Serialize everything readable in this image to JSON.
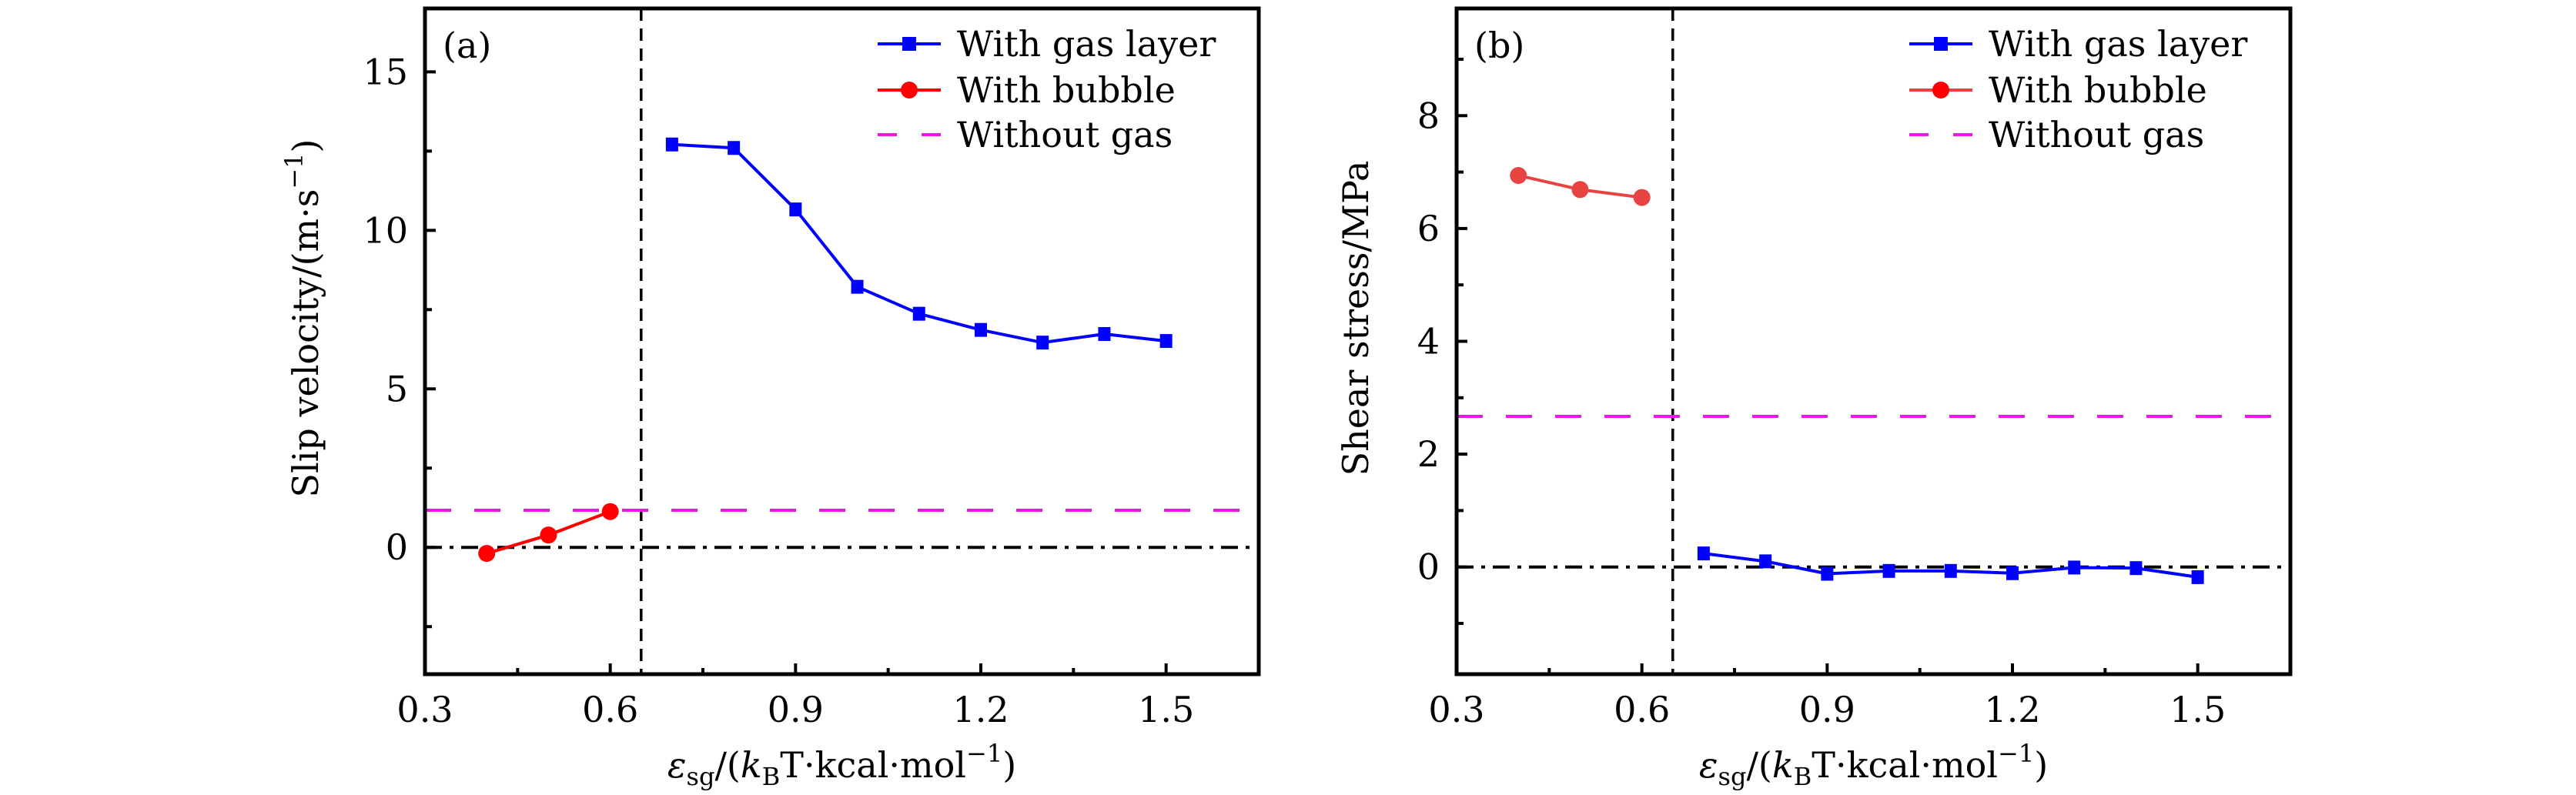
{
  "chart_data": [
    {
      "panel": "(a)",
      "type": "line",
      "xlabel": "εsg/(kBT·kcal·mol−1)",
      "xlabel_parts": {
        "main": "ε",
        "sub": "sg",
        "mid": "/(",
        "k": "k",
        "ksub": "B",
        "rest": "T·kcal·mol",
        "sup": "−1",
        "close": ")"
      },
      "ylabel": "Slip velocity/(m·s−1)",
      "ylabel_parts": {
        "main": "Slip velocity/(m·s",
        "sup": "−1",
        "close": ")"
      },
      "xlim": [
        0.3,
        1.65
      ],
      "ylim": [
        -4,
        17
      ],
      "xticks": [
        0.3,
        0.6,
        0.9,
        1.2,
        1.5
      ],
      "xtick_labels": [
        "0.3",
        "0.6",
        "0.9",
        "1.2",
        "1.5"
      ],
      "xminor": [
        0.45,
        0.75,
        1.05,
        1.35
      ],
      "yticks": [
        0,
        5,
        10,
        15
      ],
      "ytick_labels": [
        "0",
        "5",
        "10",
        "15"
      ],
      "yminor": [
        -2.5,
        2.5,
        7.5,
        12.5
      ],
      "grid": false,
      "legend_position": "top-right",
      "series": [
        {
          "name": "With gas layer",
          "marker": "square",
          "color": "#0000ff",
          "x": [
            0.7,
            0.8,
            0.9,
            1.0,
            1.1,
            1.2,
            1.3,
            1.4,
            1.5
          ],
          "y": [
            12.71,
            12.6,
            10.66,
            8.22,
            7.37,
            6.86,
            6.46,
            6.73,
            6.51
          ]
        },
        {
          "name": "With bubble",
          "marker": "circle",
          "color": "#ff0000",
          "x": [
            0.4,
            0.5,
            0.6
          ],
          "y": [
            -0.19,
            0.39,
            1.13
          ]
        },
        {
          "name": "Without gas",
          "marker": "none",
          "style": "dashed",
          "color": "#e619e6",
          "hline": 1.17
        }
      ],
      "reference_lines": [
        {
          "type": "horizontal",
          "value": 0,
          "style": "dash-dot",
          "color": "#000000"
        },
        {
          "type": "vertical",
          "value": 0.65,
          "style": "dashed",
          "color": "#000000"
        }
      ]
    },
    {
      "panel": "(b)",
      "type": "line",
      "xlabel": "εsg/(kBT·kcal·mol−1)",
      "xlabel_parts": {
        "main": "ε",
        "sub": "sg",
        "mid": "/(",
        "k": "k",
        "ksub": "B",
        "rest": "T·kcal·mol",
        "sup": "−1",
        "close": ")"
      },
      "ylabel": "Shear stress/MPa",
      "ylabel_parts": {
        "main": "Shear stress/MPa",
        "sup": "",
        "close": ""
      },
      "xlim": [
        0.3,
        1.65
      ],
      "ylim": [
        -1.9,
        9.9
      ],
      "xticks": [
        0.3,
        0.6,
        0.9,
        1.2,
        1.5
      ],
      "xtick_labels": [
        "0.3",
        "0.6",
        "0.9",
        "1.2",
        "1.5"
      ],
      "xminor": [
        0.45,
        0.75,
        1.05,
        1.35
      ],
      "yticks": [
        0,
        2,
        4,
        6,
        8
      ],
      "ytick_labels": [
        "0",
        "2",
        "4",
        "6",
        "8"
      ],
      "yminor": [
        -1,
        1,
        3,
        5,
        7,
        9
      ],
      "grid": false,
      "legend_position": "top-right",
      "series": [
        {
          "name": "With gas layer",
          "marker": "square",
          "color": "#0000ff",
          "x": [
            0.7,
            0.8,
            0.9,
            1.0,
            1.1,
            1.2,
            1.3,
            1.4,
            1.5
          ],
          "y": [
            0.24,
            0.1,
            -0.12,
            -0.07,
            -0.07,
            -0.11,
            -0.01,
            -0.02,
            -0.18
          ]
        },
        {
          "name": "With bubble",
          "marker": "circle",
          "color": "#e84343",
          "x": [
            0.4,
            0.5,
            0.6
          ],
          "y": [
            6.94,
            6.69,
            6.55
          ]
        },
        {
          "name": "Without gas",
          "marker": "none",
          "style": "dashed",
          "color": "#e619e6",
          "hline": 2.67
        }
      ],
      "reference_lines": [
        {
          "type": "horizontal",
          "value": 0,
          "style": "dash-dot",
          "color": "#000000"
        },
        {
          "type": "vertical",
          "value": 0.65,
          "style": "dashed",
          "color": "#000000"
        }
      ]
    }
  ],
  "legend": {
    "entries": [
      "With gas layer",
      "With bubble",
      "Without gas"
    ],
    "colors": [
      "#0000ff",
      "#ff0000",
      "#e619e6"
    ]
  }
}
